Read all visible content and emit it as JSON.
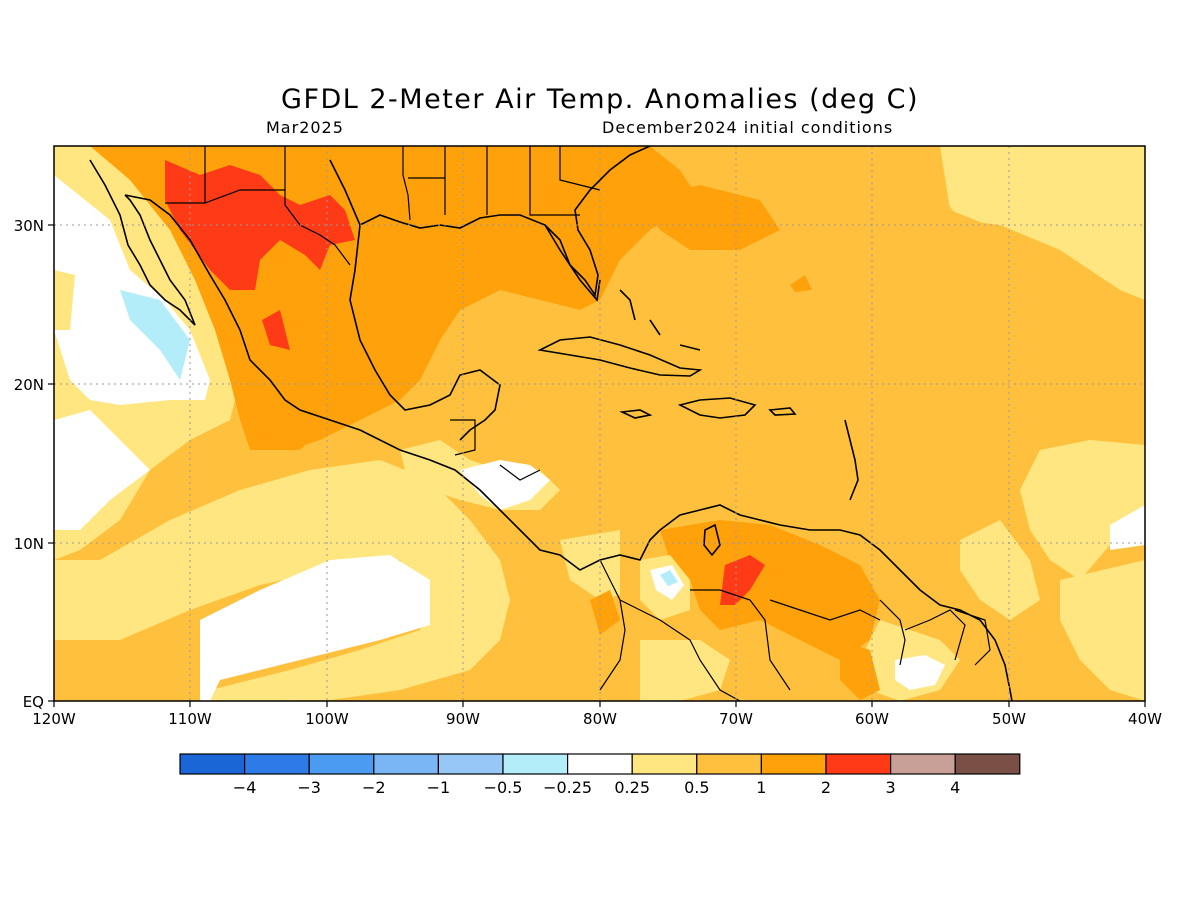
{
  "title": "GFDL 2-Meter Air Temp. Anomalies (deg C)",
  "subtitle_left": "Mar2025",
  "subtitle_right": "December2024 initial conditions",
  "map": {
    "lon_labels": [
      "120W",
      "110W",
      "100W",
      "90W",
      "80W",
      "70W",
      "60W",
      "50W",
      "40W"
    ],
    "lat_labels": [
      "30N",
      "20N",
      "10N",
      "EQ"
    ],
    "lon_range": [
      -120,
      -40
    ],
    "lat_range": [
      0,
      35
    ],
    "grid": true
  },
  "colorbar": {
    "colors": [
      "#1a66d6",
      "#2e7be8",
      "#4b9bf2",
      "#7ab5f5",
      "#97c7f7",
      "#b4edfa",
      "#ffffff",
      "#ffe680",
      "#ffc13d",
      "#ffa10a",
      "#ff3a16",
      "#c8a097",
      "#7a5046"
    ],
    "labels": [
      "-4",
      "-3",
      "-2",
      "-1",
      "-0.5",
      "-0.25",
      "0.25",
      "0.5",
      "1",
      "2",
      "3",
      "4"
    ]
  }
}
